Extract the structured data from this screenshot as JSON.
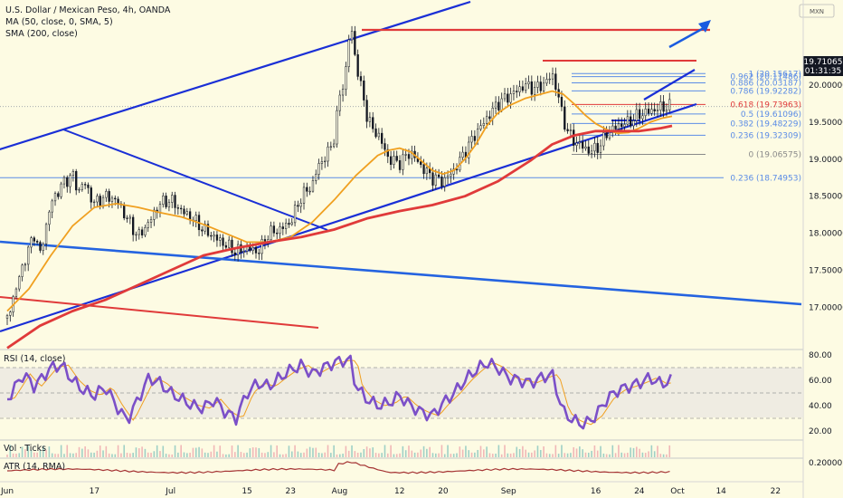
{
  "header": {
    "title": "U.S. Dollar / Mexican Peso, 4h, OANDA",
    "ma50": "MA (50, close, 0, SMA, 5)",
    "sma200": "SMA (200, close)",
    "currency": "MXN",
    "last_price": "19.71065",
    "countdown": "01:31:35"
  },
  "panels": {
    "rsi_label": "RSI (14, close)",
    "vol_label": "Vol · Ticks",
    "atr_label": "ATR (14, RMA)"
  },
  "colors": {
    "background": "#fdfbe3",
    "sma200": "#e03a3a",
    "ma50": "#f0a020",
    "trendline": "#1a2fd6",
    "fib_line": "#5b8ce6",
    "rsi": "#7b4fc8",
    "atr": "#a53434",
    "candle": "#131722"
  },
  "chart_data": {
    "type": "line",
    "price_axis": {
      "range": [
        16.43,
        21.15
      ],
      "ticks": [
        {
          "value": 20.0,
          "label": "20.00000"
        },
        {
          "value": 19.5,
          "label": "19.50000"
        },
        {
          "value": 19.0,
          "label": "19.00000"
        },
        {
          "value": 18.5,
          "label": "18.50000"
        },
        {
          "value": 18.0,
          "label": "18.00000"
        },
        {
          "value": 17.5,
          "label": "17.50000"
        },
        {
          "value": 17.0,
          "label": "17.00000"
        }
      ]
    },
    "time_axis": {
      "range": [
        0,
        124
      ],
      "ticks": [
        {
          "t": 0,
          "label": "Jun"
        },
        {
          "t": 16,
          "label": "17"
        },
        {
          "t": 30,
          "label": "Jul"
        },
        {
          "t": 44,
          "label": "15"
        },
        {
          "t": 52,
          "label": "23"
        },
        {
          "t": 61,
          "label": "Aug"
        },
        {
          "t": 72,
          "label": "12"
        },
        {
          "t": 80,
          "label": "20"
        },
        {
          "t": 92,
          "label": "Sep"
        },
        {
          "t": 108,
          "label": "16"
        },
        {
          "t": 116,
          "label": "24"
        },
        {
          "t": 123,
          "label": "Oct"
        },
        {
          "t": 131,
          "label": "14"
        },
        {
          "t": 141,
          "label": "22"
        }
      ]
    },
    "fib_levels": [
      {
        "ratio": "1",
        "value": 20.15617,
        "label": "1 (20.15617)"
      },
      {
        "ratio": "0.962",
        "value": 20.11486,
        "label": "0.962 (20.11486)"
      },
      {
        "ratio": "0.886",
        "value": 20.03187,
        "label": "0.886 (20.03187)"
      },
      {
        "ratio": "0.786",
        "value": 19.92282,
        "label": "0.786 (19.92282)"
      },
      {
        "ratio": "0.618",
        "value": 19.73963,
        "label": "0.618 (19.73963)"
      },
      {
        "ratio": "0.5",
        "value": 19.61096,
        "label": "0.5 (19.61096)"
      },
      {
        "ratio": "0.382",
        "value": 19.48229,
        "label": "0.382 (19.48229)"
      },
      {
        "ratio": "0.236",
        "value": 19.32309,
        "label": "0.236 (19.32309)"
      },
      {
        "ratio": "0",
        "value": 19.06575,
        "label": "0 (19.06575)"
      }
    ],
    "extra_levels": [
      {
        "value": 18.74953,
        "label": "0.236 (18.74953)"
      }
    ],
    "series": [
      {
        "name": "Price",
        "points": [
          [
            0,
            16.85
          ],
          [
            3,
            17.6
          ],
          [
            5,
            18.0
          ],
          [
            6,
            17.7
          ],
          [
            8,
            18.4
          ],
          [
            10,
            18.65
          ],
          [
            12,
            18.8
          ],
          [
            13,
            18.55
          ],
          [
            14,
            18.7
          ],
          [
            16,
            18.4
          ],
          [
            18,
            18.5
          ],
          [
            20,
            18.45
          ],
          [
            22,
            18.2
          ],
          [
            24,
            17.95
          ],
          [
            26,
            18.15
          ],
          [
            28,
            18.4
          ],
          [
            30,
            18.45
          ],
          [
            32,
            18.3
          ],
          [
            34,
            18.2
          ],
          [
            36,
            18.05
          ],
          [
            38,
            17.95
          ],
          [
            40,
            17.85
          ],
          [
            42,
            17.75
          ],
          [
            44,
            17.8
          ],
          [
            46,
            17.75
          ],
          [
            47,
            17.85
          ],
          [
            48,
            18.0
          ],
          [
            50,
            18.05
          ],
          [
            52,
            18.15
          ],
          [
            54,
            18.5
          ],
          [
            56,
            18.65
          ],
          [
            57,
            18.9
          ],
          [
            59,
            19.1
          ],
          [
            60,
            19.3
          ],
          [
            61,
            19.85
          ],
          [
            62,
            20.1
          ],
          [
            63,
            20.85
          ],
          [
            64,
            20.3
          ],
          [
            65,
            19.95
          ],
          [
            66,
            19.6
          ],
          [
            67,
            19.4
          ],
          [
            68,
            19.35
          ],
          [
            70,
            19.0
          ],
          [
            72,
            18.95
          ],
          [
            74,
            19.1
          ],
          [
            76,
            18.9
          ],
          [
            78,
            18.75
          ],
          [
            80,
            18.7
          ],
          [
            82,
            18.85
          ],
          [
            84,
            19.1
          ],
          [
            86,
            19.35
          ],
          [
            88,
            19.55
          ],
          [
            90,
            19.75
          ],
          [
            92,
            19.85
          ],
          [
            93,
            19.9
          ],
          [
            95,
            20.0
          ],
          [
            97,
            19.95
          ],
          [
            99,
            20.05
          ],
          [
            100,
            20.15
          ],
          [
            101,
            19.9
          ],
          [
            102,
            19.55
          ],
          [
            103,
            19.35
          ],
          [
            104,
            19.25
          ],
          [
            106,
            19.15
          ],
          [
            107,
            19.1
          ],
          [
            109,
            19.2
          ],
          [
            110,
            19.35
          ],
          [
            112,
            19.45
          ],
          [
            114,
            19.5
          ],
          [
            116,
            19.6
          ],
          [
            118,
            19.65
          ],
          [
            120,
            19.7
          ],
          [
            122,
            19.71065
          ]
        ]
      },
      {
        "name": "MA (50, close, 0, SMA, 5)",
        "points": [
          [
            0,
            16.95
          ],
          [
            4,
            17.25
          ],
          [
            8,
            17.7
          ],
          [
            12,
            18.1
          ],
          [
            16,
            18.35
          ],
          [
            20,
            18.4
          ],
          [
            24,
            18.35
          ],
          [
            28,
            18.28
          ],
          [
            32,
            18.22
          ],
          [
            36,
            18.12
          ],
          [
            40,
            18.0
          ],
          [
            44,
            17.88
          ],
          [
            48,
            17.88
          ],
          [
            52,
            17.95
          ],
          [
            56,
            18.15
          ],
          [
            60,
            18.45
          ],
          [
            64,
            18.78
          ],
          [
            68,
            19.05
          ],
          [
            70,
            19.12
          ],
          [
            72,
            19.15
          ],
          [
            74,
            19.1
          ],
          [
            76,
            18.98
          ],
          [
            78,
            18.85
          ],
          [
            80,
            18.8
          ],
          [
            82,
            18.85
          ],
          [
            84,
            19.0
          ],
          [
            86,
            19.2
          ],
          [
            88,
            19.45
          ],
          [
            90,
            19.62
          ],
          [
            92,
            19.72
          ],
          [
            95,
            19.82
          ],
          [
            98,
            19.88
          ],
          [
            100,
            19.92
          ],
          [
            102,
            19.88
          ],
          [
            104,
            19.75
          ],
          [
            106,
            19.6
          ],
          [
            108,
            19.48
          ],
          [
            110,
            19.4
          ],
          [
            112,
            19.35
          ],
          [
            114,
            19.36
          ],
          [
            116,
            19.42
          ],
          [
            118,
            19.5
          ],
          [
            120,
            19.55
          ],
          [
            122,
            19.58
          ]
        ]
      },
      {
        "name": "SMA (200, close)",
        "points": [
          [
            0,
            16.45
          ],
          [
            6,
            16.75
          ],
          [
            12,
            16.95
          ],
          [
            18,
            17.1
          ],
          [
            24,
            17.3
          ],
          [
            30,
            17.5
          ],
          [
            36,
            17.7
          ],
          [
            42,
            17.8
          ],
          [
            48,
            17.88
          ],
          [
            54,
            17.95
          ],
          [
            60,
            18.05
          ],
          [
            66,
            18.2
          ],
          [
            72,
            18.3
          ],
          [
            78,
            18.38
          ],
          [
            84,
            18.5
          ],
          [
            90,
            18.7
          ],
          [
            96,
            18.98
          ],
          [
            100,
            19.2
          ],
          [
            104,
            19.32
          ],
          [
            108,
            19.38
          ],
          [
            112,
            19.38
          ],
          [
            116,
            19.38
          ],
          [
            120,
            19.42
          ],
          [
            122,
            19.45
          ]
        ]
      }
    ],
    "rsi": {
      "range": [
        20,
        80
      ],
      "ticks": [
        {
          "value": 80,
          "label": "80.00"
        },
        {
          "value": 60,
          "label": "60.00"
        },
        {
          "value": 40,
          "label": "40.00"
        },
        {
          "value": 20,
          "label": "20.00"
        }
      ],
      "bands": [
        70,
        50,
        30
      ],
      "values": [
        [
          0,
          45
        ],
        [
          3,
          65
        ],
        [
          5,
          55
        ],
        [
          8,
          70
        ],
        [
          10,
          72
        ],
        [
          12,
          60
        ],
        [
          14,
          52
        ],
        [
          16,
          48
        ],
        [
          18,
          55
        ],
        [
          20,
          40
        ],
        [
          22,
          28
        ],
        [
          24,
          45
        ],
        [
          26,
          62
        ],
        [
          28,
          58
        ],
        [
          30,
          50
        ],
        [
          32,
          45
        ],
        [
          34,
          40
        ],
        [
          36,
          38
        ],
        [
          38,
          45
        ],
        [
          40,
          35
        ],
        [
          42,
          30
        ],
        [
          44,
          50
        ],
        [
          46,
          58
        ],
        [
          48,
          55
        ],
        [
          50,
          62
        ],
        [
          52,
          68
        ],
        [
          54,
          72
        ],
        [
          56,
          65
        ],
        [
          58,
          70
        ],
        [
          60,
          74
        ],
        [
          62,
          76
        ],
        [
          63,
          75
        ],
        [
          64,
          55
        ],
        [
          66,
          45
        ],
        [
          68,
          40
        ],
        [
          70,
          42
        ],
        [
          72,
          48
        ],
        [
          74,
          40
        ],
        [
          76,
          35
        ],
        [
          78,
          32
        ],
        [
          80,
          42
        ],
        [
          82,
          50
        ],
        [
          84,
          60
        ],
        [
          86,
          68
        ],
        [
          88,
          74
        ],
        [
          90,
          70
        ],
        [
          92,
          62
        ],
        [
          94,
          60
        ],
        [
          96,
          58
        ],
        [
          98,
          62
        ],
        [
          100,
          65
        ],
        [
          101,
          50
        ],
        [
          102,
          35
        ],
        [
          104,
          28
        ],
        [
          106,
          25
        ],
        [
          108,
          32
        ],
        [
          110,
          45
        ],
        [
          112,
          52
        ],
        [
          114,
          55
        ],
        [
          116,
          58
        ],
        [
          118,
          62
        ],
        [
          120,
          57
        ],
        [
          122,
          60
        ]
      ]
    },
    "atr": {
      "ticks": [
        {
          "value": 0.2,
          "label": "0.20000"
        }
      ]
    }
  }
}
